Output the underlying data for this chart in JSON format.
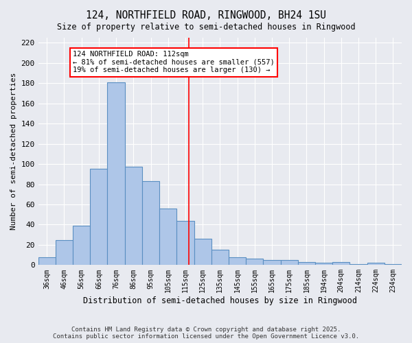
{
  "title1": "124, NORTHFIELD ROAD, RINGWOOD, BH24 1SU",
  "title2": "Size of property relative to semi-detached houses in Ringwood",
  "xlabel": "Distribution of semi-detached houses by size in Ringwood",
  "ylabel": "Number of semi-detached properties",
  "categories": [
    "36sqm",
    "46sqm",
    "56sqm",
    "66sqm",
    "76sqm",
    "86sqm",
    "95sqm",
    "105sqm",
    "115sqm",
    "125sqm",
    "135sqm",
    "145sqm",
    "155sqm",
    "165sqm",
    "175sqm",
    "185sqm",
    "194sqm",
    "204sqm",
    "214sqm",
    "224sqm",
    "234sqm"
  ],
  "values": [
    8,
    25,
    39,
    95,
    181,
    97,
    83,
    56,
    44,
    26,
    15,
    8,
    6,
    5,
    5,
    3,
    2,
    3,
    1,
    2,
    1
  ],
  "bar_color": "#aec6e8",
  "bar_edge_color": "#5a8fc2",
  "background_color": "#e8eaf0",
  "grid_color": "#ffffff",
  "vline_x": 8.2,
  "vline_color": "red",
  "annotation_text": "124 NORTHFIELD ROAD: 112sqm\n← 81% of semi-detached houses are smaller (557)\n19% of semi-detached houses are larger (130) →",
  "annotation_box_color": "white",
  "annotation_box_edge": "red",
  "ylim": [
    0,
    225
  ],
  "yticks": [
    0,
    20,
    40,
    60,
    80,
    100,
    120,
    140,
    160,
    180,
    200,
    220
  ],
  "footer1": "Contains HM Land Registry data © Crown copyright and database right 2025.",
  "footer2": "Contains public sector information licensed under the Open Government Licence v3.0."
}
